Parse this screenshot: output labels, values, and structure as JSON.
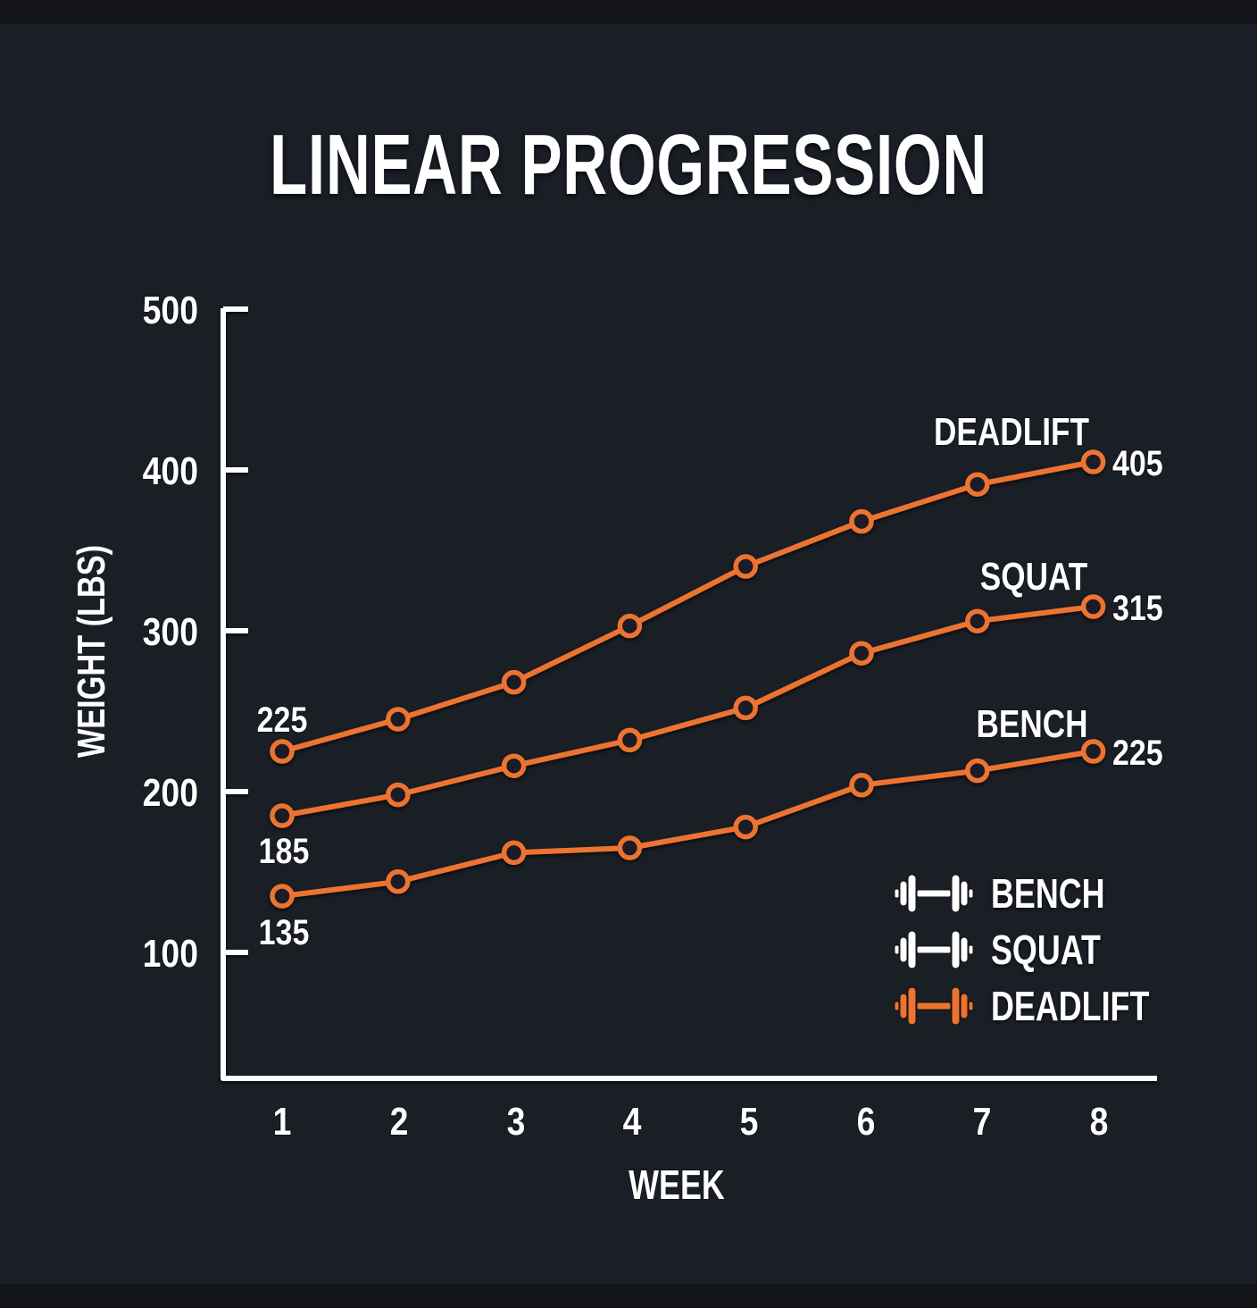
{
  "title": "LINEAR PROGRESSION",
  "colors": {
    "background": "#1a1e25",
    "band": "#13151a",
    "accent": "#ec7330",
    "text": "#ffffff",
    "axis": "#ffffff"
  },
  "axes": {
    "x_label": "WEEK",
    "y_label": "WEIGHT (LBS)",
    "x_ticks": [
      "1",
      "2",
      "3",
      "4",
      "5",
      "6",
      "7",
      "8"
    ],
    "y_ticks": [
      "100",
      "200",
      "300",
      "400",
      "500"
    ]
  },
  "annotations": {
    "start_deadlift": "225",
    "start_squat": "185",
    "start_bench": "135",
    "end_deadlift_name": "DEADLIFT",
    "end_deadlift_value": "405",
    "end_squat_name": "SQUAT",
    "end_squat_value": "315",
    "end_bench_name": "BENCH",
    "end_bench_value": "225"
  },
  "legend": [
    {
      "label": "BENCH",
      "icon": "dumbbell-icon",
      "color": "#ffffff"
    },
    {
      "label": "SQUAT",
      "icon": "dumbbell-icon",
      "color": "#ffffff"
    },
    {
      "label": "DEADLIFT",
      "icon": "dumbbell-icon",
      "color": "#ec7330"
    }
  ],
  "chart_data": {
    "type": "line",
    "title": "LINEAR PROGRESSION",
    "xlabel": "WEEK",
    "ylabel": "WEIGHT (LBS)",
    "x": [
      1,
      2,
      3,
      4,
      5,
      6,
      7,
      8
    ],
    "ylim": [
      20,
      500
    ],
    "yticks": [
      100,
      200,
      300,
      400,
      500
    ],
    "grid": false,
    "legend_position": "lower right",
    "series": [
      {
        "name": "DEADLIFT",
        "color": "#ec7330",
        "values": [
          225,
          245,
          268,
          303,
          340,
          368,
          391,
          405
        ]
      },
      {
        "name": "SQUAT",
        "color": "#ec7330",
        "values": [
          185,
          198,
          216,
          232,
          252,
          286,
          306,
          315
        ]
      },
      {
        "name": "BENCH",
        "color": "#ec7330",
        "values": [
          135,
          144,
          162,
          165,
          178,
          204,
          213,
          225
        ]
      }
    ],
    "annotations": [
      {
        "text": "225",
        "x": 1,
        "series": "DEADLIFT"
      },
      {
        "text": "185",
        "x": 1,
        "series": "SQUAT"
      },
      {
        "text": "135",
        "x": 1,
        "series": "BENCH"
      },
      {
        "text": "DEADLIFT 405",
        "x": 8,
        "series": "DEADLIFT"
      },
      {
        "text": "SQUAT 315",
        "x": 8,
        "series": "SQUAT"
      },
      {
        "text": "BENCH 225",
        "x": 8,
        "series": "BENCH"
      }
    ]
  }
}
